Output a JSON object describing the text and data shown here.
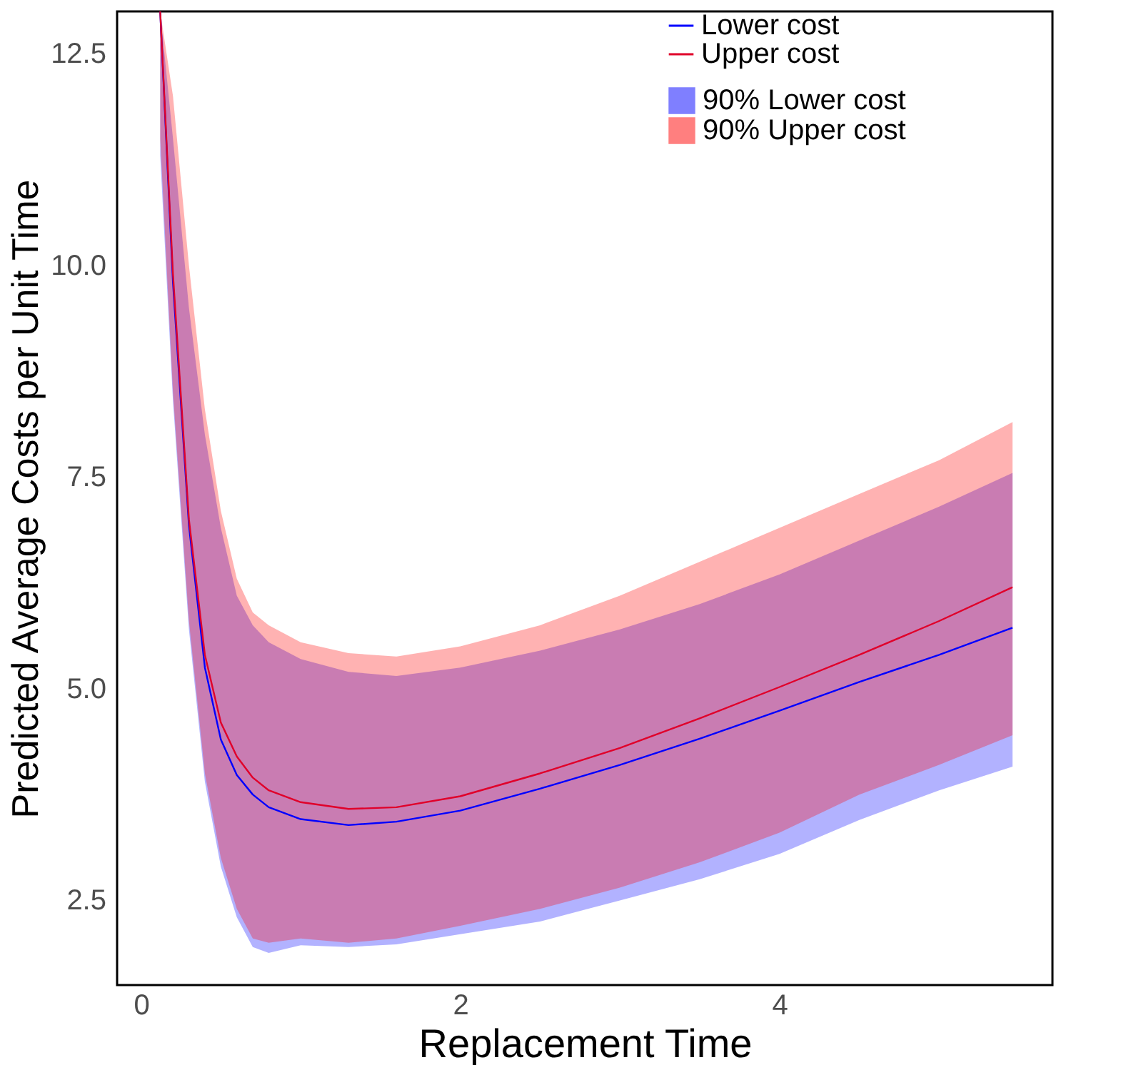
{
  "chart_data": {
    "type": "line",
    "xlabel": "Replacement Time",
    "ylabel": "Predicted Average Costs per Unit Time",
    "x": [
      0.12,
      0.2,
      0.3,
      0.4,
      0.5,
      0.6,
      0.7,
      0.8,
      1.0,
      1.3,
      1.6,
      2.0,
      2.5,
      3.0,
      3.5,
      4.0,
      4.5,
      5.0,
      5.46
    ],
    "series": [
      {
        "name": "Lower cost",
        "color": "#0000ff",
        "line_style": "solid",
        "values": [
          13.0,
          9.8,
          6.93,
          5.25,
          4.4,
          3.98,
          3.75,
          3.6,
          3.46,
          3.39,
          3.43,
          3.56,
          3.82,
          4.1,
          4.41,
          4.74,
          5.08,
          5.4,
          5.72
        ]
      },
      {
        "name": "Upper cost",
        "color": "#e0002a",
        "line_style": "solid",
        "values": [
          13.0,
          9.9,
          7.0,
          5.4,
          4.6,
          4.2,
          3.95,
          3.8,
          3.66,
          3.58,
          3.6,
          3.73,
          4.0,
          4.3,
          4.65,
          5.02,
          5.4,
          5.8,
          6.2
        ]
      },
      {
        "name": "90% Lower cost",
        "type": "area",
        "color": "#0000ff",
        "values": [
          null,
          null,
          null,
          null,
          null,
          null,
          null,
          null,
          null,
          null,
          null,
          null,
          null,
          null,
          null,
          null,
          null,
          null,
          null
        ],
        "lower": [
          11.3,
          8.4,
          5.7,
          3.9,
          2.9,
          2.3,
          1.95,
          1.88,
          1.97,
          1.95,
          1.98,
          2.1,
          2.25,
          2.5,
          2.75,
          3.05,
          3.45,
          3.8,
          4.08
        ],
        "upper": [
          13.0,
          11.5,
          9.5,
          8.0,
          6.9,
          6.1,
          5.75,
          5.55,
          5.35,
          5.2,
          5.15,
          5.25,
          5.45,
          5.7,
          6.0,
          6.35,
          6.75,
          7.15,
          7.55
        ]
      },
      {
        "name": "90% Upper cost",
        "type": "area",
        "color": "#ff0000",
        "values": [
          null,
          null,
          null,
          null,
          null,
          null,
          null,
          null,
          null,
          null,
          null,
          null,
          null,
          null,
          null,
          null,
          null,
          null,
          null
        ],
        "lower": [
          11.5,
          8.5,
          5.8,
          4.0,
          3.0,
          2.4,
          2.05,
          2.0,
          2.05,
          2.0,
          2.05,
          2.2,
          2.4,
          2.65,
          2.95,
          3.3,
          3.75,
          4.1,
          4.45
        ],
        "upper": [
          13.0,
          12.0,
          10.0,
          8.3,
          7.1,
          6.3,
          5.9,
          5.75,
          5.55,
          5.42,
          5.38,
          5.5,
          5.75,
          6.1,
          6.5,
          6.9,
          7.3,
          7.7,
          8.15
        ]
      }
    ],
    "xlim": [
      -0.15,
      5.71
    ],
    "ylim": [
      1.5,
      13.0
    ],
    "xticks": [
      0,
      2,
      4
    ],
    "yticks": [
      2.5,
      {
        "value": 5,
        "label": "5.0"
      },
      7.5,
      {
        "value": 10,
        "label": "10.0"
      },
      12.5
    ],
    "grid": false,
    "legend": "top right"
  }
}
